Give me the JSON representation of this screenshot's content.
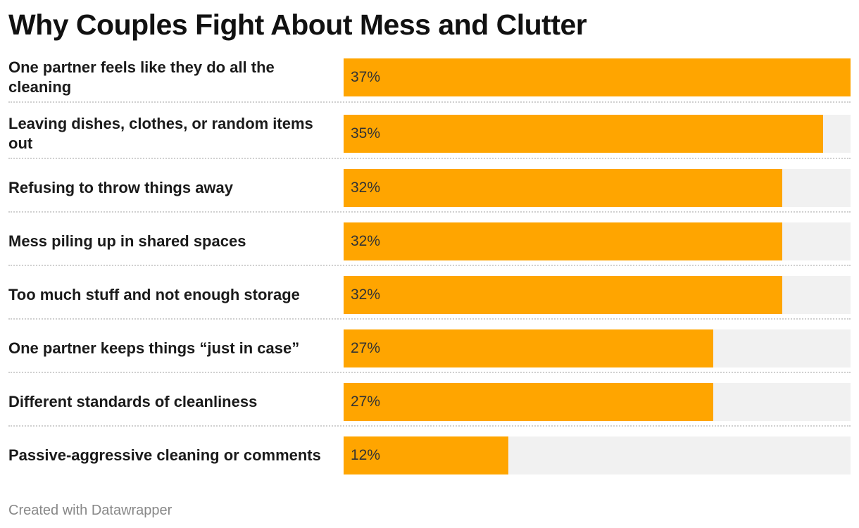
{
  "chart_data": {
    "type": "bar",
    "orientation": "horizontal",
    "title": "Why Couples Fight About Mess and Clutter",
    "categories": [
      "One partner feels like they do all the cleaning",
      "Leaving dishes, clothes, or random items out",
      "Refusing to throw things away",
      "Mess piling up in shared spaces",
      "Too much stuff and not enough storage",
      "One partner keeps things “just in case”",
      "Different standards of cleanliness",
      "Passive-aggressive cleaning or comments"
    ],
    "values": [
      37,
      35,
      32,
      32,
      32,
      27,
      27,
      12
    ],
    "value_labels": [
      "37%",
      "35%",
      "32%",
      "32%",
      "32%",
      "27%",
      "27%",
      "12%"
    ],
    "unit": "%",
    "xlim": [
      0,
      37
    ],
    "bar_color": "#ffa500",
    "track_color": "#f1f1f1",
    "grid": false,
    "legend": "none"
  },
  "footer": {
    "credit": "Created with Datawrapper"
  }
}
